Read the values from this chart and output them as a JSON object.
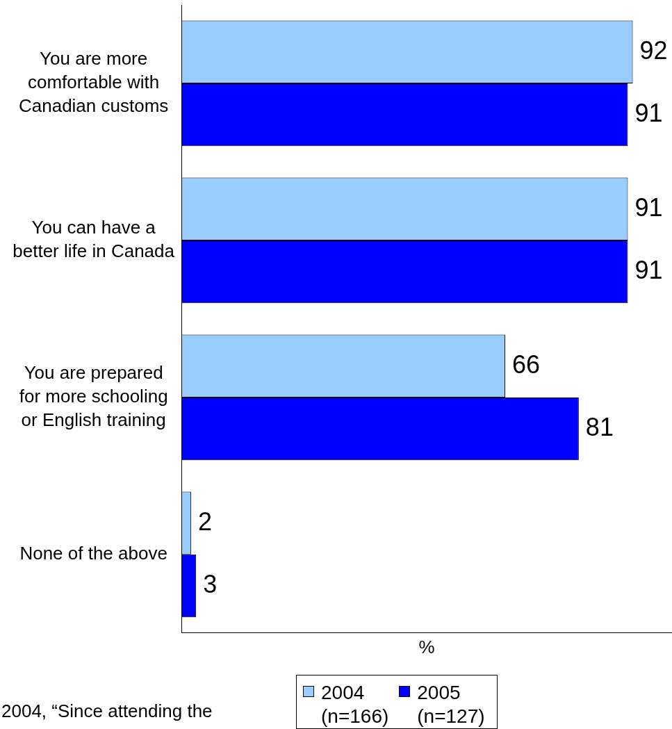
{
  "chart_data": {
    "type": "bar",
    "orientation": "horizontal",
    "categories": [
      "You are more comfortable with Canadian customs",
      "You can have a better life in Canada",
      "You are prepared for more schooling or English training",
      "None of the above"
    ],
    "series": [
      {
        "name": "2004 (n=166)",
        "color": "#99ccff",
        "values": [
          92,
          91,
          66,
          2
        ]
      },
      {
        "name": "2005 (n=127)",
        "color": "#0000ff",
        "values": [
          91,
          91,
          81,
          3
        ]
      }
    ],
    "xlabel": "%",
    "xlim": [
      0,
      100
    ],
    "tick_labels": "y",
    "data_labels": true,
    "legend": "bottom",
    "annotations": [
      "2004, “Since attending the"
    ]
  }
}
